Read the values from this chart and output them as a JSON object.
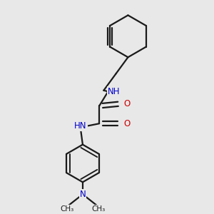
{
  "background_color": "#e8e8e8",
  "bond_color": "#1a1a1a",
  "N_color": "#0000cc",
  "O_color": "#cc0000",
  "line_width": 1.6,
  "font_size_atom": 8.5,
  "fig_size": [
    3.0,
    3.0
  ],
  "dpi": 100,
  "xlim": [
    0.15,
    0.85
  ],
  "ylim": [
    0.05,
    0.98
  ]
}
